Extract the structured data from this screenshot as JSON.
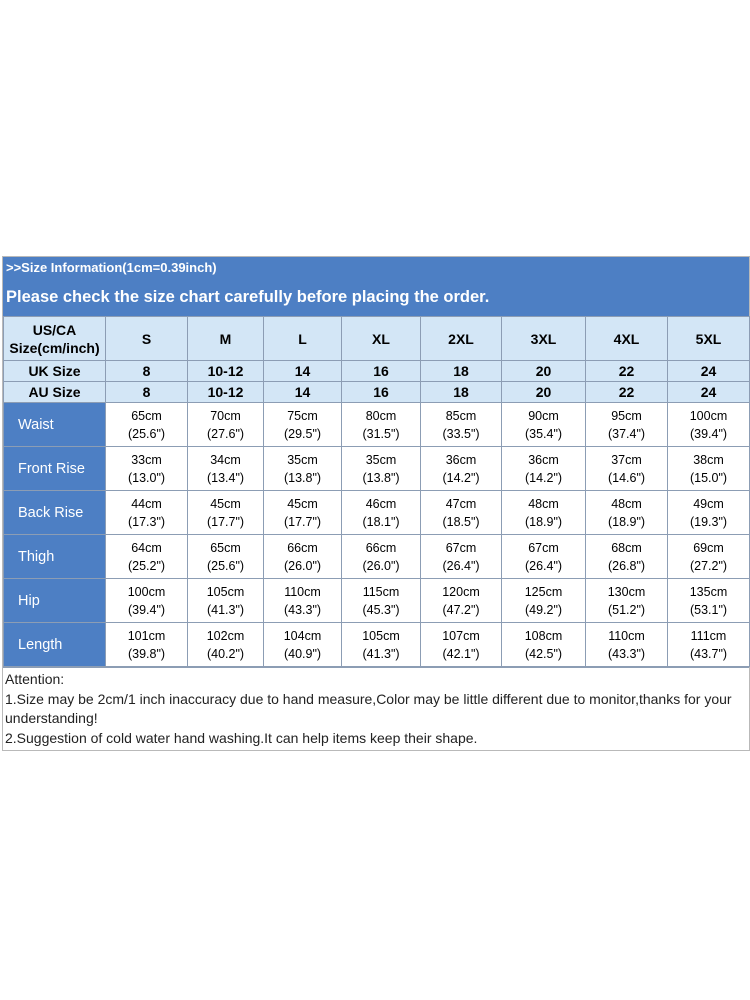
{
  "header": {
    "info": ">>Size Information(1cm=0.39inch)",
    "notice": "Please check the size chart carefully before placing the order."
  },
  "table": {
    "corner_label_line1": "US/CA",
    "corner_label_line2": "Size(cm/inch)",
    "sizes": [
      "S",
      "M",
      "L",
      "XL",
      "2XL",
      "3XL",
      "4XL",
      "5XL"
    ],
    "uk_label": "UK Size",
    "uk": [
      "8",
      "10-12",
      "14",
      "16",
      "18",
      "20",
      "22",
      "24"
    ],
    "au_label": "AU Size",
    "au": [
      "8",
      "10-12",
      "14",
      "16",
      "18",
      "20",
      "22",
      "24"
    ],
    "rows": [
      {
        "label": "Waist",
        "cm": [
          "65cm",
          "70cm",
          "75cm",
          "80cm",
          "85cm",
          "90cm",
          "95cm",
          "100cm"
        ],
        "inch": [
          "(25.6\")",
          "(27.6\")",
          "(29.5\")",
          "(31.5\")",
          "(33.5\")",
          "(35.4\")",
          "(37.4\")",
          "(39.4\")"
        ]
      },
      {
        "label": "Front Rise",
        "cm": [
          "33cm",
          "34cm",
          "35cm",
          "35cm",
          "36cm",
          "36cm",
          "37cm",
          "38cm"
        ],
        "inch": [
          "(13.0\")",
          "(13.4\")",
          "(13.8\")",
          "(13.8\")",
          "(14.2\")",
          "(14.2\")",
          "(14.6\")",
          "(15.0\")"
        ]
      },
      {
        "label": "Back Rise",
        "cm": [
          "44cm",
          "45cm",
          "45cm",
          "46cm",
          "47cm",
          "48cm",
          "48cm",
          "49cm"
        ],
        "inch": [
          "(17.3\")",
          "(17.7\")",
          "(17.7\")",
          "(18.1\")",
          "(18.5\")",
          "(18.9\")",
          "(18.9\")",
          "(19.3\")"
        ]
      },
      {
        "label": "Thigh",
        "cm": [
          "64cm",
          "65cm",
          "66cm",
          "66cm",
          "67cm",
          "67cm",
          "68cm",
          "69cm"
        ],
        "inch": [
          "(25.2\")",
          "(25.6\")",
          "(26.0\")",
          "(26.0\")",
          "(26.4\")",
          "(26.4\")",
          "(26.8\")",
          "(27.2\")"
        ]
      },
      {
        "label": "Hip",
        "cm": [
          "100cm",
          "105cm",
          "110cm",
          "115cm",
          "120cm",
          "125cm",
          "130cm",
          "135cm"
        ],
        "inch": [
          "(39.4\")",
          "(41.3\")",
          "(43.3\")",
          "(45.3\")",
          "(47.2\")",
          "(49.2\")",
          "(51.2\")",
          "(53.1\")"
        ]
      },
      {
        "label": "Length",
        "cm": [
          "101cm",
          "102cm",
          "104cm",
          "105cm",
          "107cm",
          "108cm",
          "110cm",
          "111cm"
        ],
        "inch": [
          "(39.8\")",
          "(40.2\")",
          "(40.9\")",
          "(41.3\")",
          "(42.1\")",
          "(42.5\")",
          "(43.3\")",
          "(43.7\")"
        ]
      }
    ]
  },
  "attention": {
    "title": "Attention:",
    "note1": "1.Size may be 2cm/1 inch inaccuracy due to hand measure,Color may be little different due to monitor,thanks for your understanding!",
    "note2": "2.Suggestion of cold water hand washing.It can help items keep their shape."
  },
  "colors": {
    "header_blue": "#4d7fc4",
    "size_header_bg": "#d3e6f6"
  }
}
